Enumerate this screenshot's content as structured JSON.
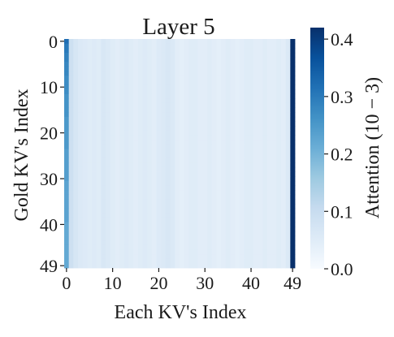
{
  "chart_data": {
    "type": "heatmap",
    "title": "Layer 5",
    "xlabel": "Each KV's Index",
    "ylabel": "Gold KV's Index",
    "colorbar_label": "Attention (10 − 3)",
    "n_rows": 50,
    "n_cols": 50,
    "x_ticks": [
      0,
      10,
      20,
      30,
      40,
      49
    ],
    "y_ticks": [
      0,
      10,
      20,
      30,
      40,
      49
    ],
    "colorbar_ticks": [
      0.0,
      0.1,
      0.2,
      0.3,
      0.4
    ],
    "colorbar_tick_labels": [
      "0.0",
      "0.1",
      "0.2",
      "0.3",
      "0.4"
    ],
    "vmin": 0.0,
    "vmax": 0.42,
    "colormap": "Blues",
    "colormap_stops": [
      "#f7fbff",
      "#deebf7",
      "#c6dbef",
      "#9ecae1",
      "#6baed6",
      "#4292c6",
      "#2171b5",
      "#08519c",
      "#08306b"
    ],
    "column_values": [
      0.3,
      0.09,
      0.07,
      0.06,
      0.055,
      0.05,
      0.055,
      0.05,
      0.065,
      0.06,
      0.05,
      0.045,
      0.05,
      0.055,
      0.05,
      0.045,
      0.05,
      0.055,
      0.05,
      0.045,
      0.055,
      0.06,
      0.065,
      0.06,
      0.045,
      0.04,
      0.045,
      0.05,
      0.05,
      0.045,
      0.045,
      0.05,
      0.045,
      0.04,
      0.045,
      0.05,
      0.045,
      0.04,
      0.045,
      0.05,
      0.05,
      0.045,
      0.045,
      0.05,
      0.045,
      0.045,
      0.05,
      0.045,
      0.06,
      0.42
    ],
    "first_column_by_row": [
      0.32,
      0.3,
      0.3,
      0.29,
      0.29,
      0.28,
      0.28,
      0.28,
      0.27,
      0.27,
      0.27,
      0.27,
      0.26,
      0.26,
      0.26,
      0.26,
      0.26,
      0.25,
      0.25,
      0.25,
      0.25,
      0.25,
      0.25,
      0.25,
      0.24,
      0.24,
      0.24,
      0.24,
      0.24,
      0.24,
      0.24,
      0.23,
      0.23,
      0.23,
      0.23,
      0.23,
      0.23,
      0.23,
      0.23,
      0.23,
      0.22,
      0.22,
      0.22,
      0.22,
      0.22,
      0.22,
      0.22,
      0.22,
      0.22,
      0.22
    ]
  }
}
